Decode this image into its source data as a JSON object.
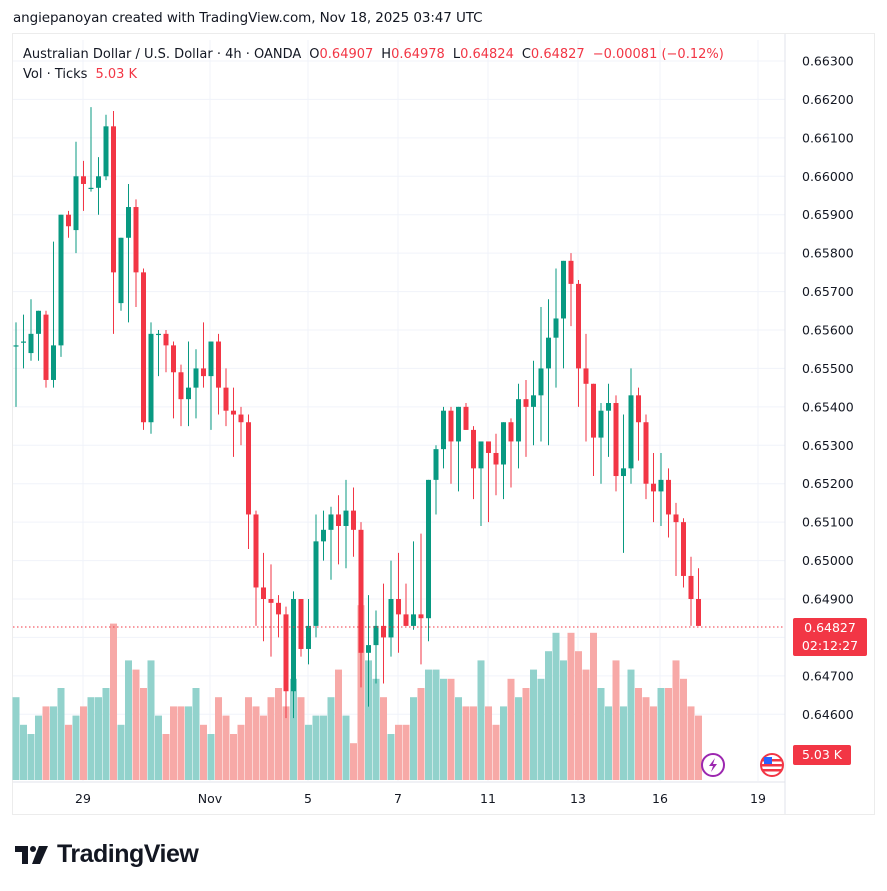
{
  "caption": "angiepanoyan created with TradingView.com, Nov 18, 2025 03:47 UTC",
  "legend": {
    "symbol": "Australian Dollar / U.S. Dollar · 4h · OANDA",
    "o_label": "O",
    "o_value": "0.64907",
    "h_label": "H",
    "h_value": "0.64978",
    "l_label": "L",
    "l_value": "0.64824",
    "c_label": "C",
    "c_value": "0.64827",
    "change": "−0.00081 (−0.12%)",
    "vol_label": "Vol · Ticks",
    "vol_value": "5.03 K"
  },
  "price_axis": {
    "labels": [
      "0.66300",
      "0.66200",
      "0.66100",
      "0.66000",
      "0.65900",
      "0.65800",
      "0.65700",
      "0.65600",
      "0.65500",
      "0.65400",
      "0.65300",
      "0.65200",
      "0.65100",
      "0.65000",
      "0.64900",
      "0.64700",
      "0.64600"
    ]
  },
  "last_price_tag": {
    "price": "0.64827",
    "countdown": "02:12:27"
  },
  "volume_tag": "5.03 K",
  "time_axis": {
    "labels": [
      "29",
      "Nov",
      "5",
      "7",
      "11",
      "13",
      "16",
      "19"
    ]
  },
  "brand": {
    "name": "TradingView"
  },
  "colors": {
    "up": "#089981",
    "down": "#f23645",
    "vol_up": "#92d2cc",
    "vol_down": "#f7a9a7",
    "grid": "#f0f3fa"
  },
  "icons": {
    "events": [
      "lightning-event-icon",
      "us-flag-event-icon"
    ]
  },
  "chart_data": {
    "type": "candlestick",
    "title": "Australian Dollar / U.S. Dollar · 4h · OANDA",
    "xlabel": "",
    "ylabel": "Price",
    "ylim": [
      0.6455,
      0.6635
    ],
    "grid": true,
    "x_ticks": [
      "29",
      "Nov",
      "5",
      "7",
      "11",
      "13",
      "16",
      "19"
    ],
    "y_ticks": [
      0.663,
      0.662,
      0.661,
      0.66,
      0.659,
      0.658,
      0.657,
      0.656,
      0.655,
      0.654,
      0.653,
      0.652,
      0.651,
      0.65,
      0.649,
      0.648,
      0.647,
      0.646
    ],
    "last": {
      "open": 0.64907,
      "high": 0.64978,
      "low": 0.64824,
      "close": 0.64827,
      "change": -0.00081,
      "change_pct": -0.12,
      "volume": "5.03K"
    },
    "candles": [
      [
        0.6556,
        0.6562,
        0.654,
        0.6556,
        9
      ],
      [
        0.6557,
        0.6564,
        0.655,
        0.6557,
        6
      ],
      [
        0.6554,
        0.6568,
        0.6552,
        0.6559,
        5
      ],
      [
        0.6559,
        0.6563,
        0.6552,
        0.6565,
        7
      ],
      [
        0.6564,
        0.6565,
        0.6545,
        0.6547,
        8
      ],
      [
        0.6547,
        0.6583,
        0.6545,
        0.6556,
        8
      ],
      [
        0.6556,
        0.659,
        0.6553,
        0.659,
        10
      ],
      [
        0.659,
        0.6591,
        0.6584,
        0.6587,
        6
      ],
      [
        0.6586,
        0.6609,
        0.658,
        0.66,
        7
      ],
      [
        0.66,
        0.6604,
        0.6591,
        0.6598,
        8
      ],
      [
        0.6597,
        0.6618,
        0.6596,
        0.6597,
        9
      ],
      [
        0.6597,
        0.6605,
        0.659,
        0.66,
        9
      ],
      [
        0.66,
        0.6616,
        0.6599,
        0.6613,
        10
      ],
      [
        0.6613,
        0.6617,
        0.6559,
        0.6575,
        17
      ],
      [
        0.6567,
        0.6579,
        0.6565,
        0.6584,
        6
      ],
      [
        0.6584,
        0.6598,
        0.6562,
        0.6592,
        13
      ],
      [
        0.6592,
        0.6594,
        0.6566,
        0.6575,
        12
      ],
      [
        0.6575,
        0.6576,
        0.6534,
        0.6536,
        10
      ],
      [
        0.6536,
        0.6562,
        0.6533,
        0.6559,
        13
      ],
      [
        0.6559,
        0.656,
        0.6548,
        0.6559,
        7
      ],
      [
        0.6559,
        0.656,
        0.6549,
        0.6556,
        5
      ],
      [
        0.6556,
        0.6557,
        0.6537,
        0.6549,
        8
      ],
      [
        0.6549,
        0.6551,
        0.6535,
        0.6542,
        8
      ],
      [
        0.6542,
        0.6557,
        0.6535,
        0.6545,
        8
      ],
      [
        0.6545,
        0.6555,
        0.6537,
        0.655,
        10
      ],
      [
        0.655,
        0.6562,
        0.6545,
        0.6548,
        6
      ],
      [
        0.6548,
        0.6552,
        0.6534,
        0.6557,
        5
      ],
      [
        0.6557,
        0.6559,
        0.6538,
        0.6545,
        9
      ],
      [
        0.6545,
        0.655,
        0.6535,
        0.6539,
        7
      ],
      [
        0.6539,
        0.6545,
        0.6527,
        0.6538,
        5
      ],
      [
        0.6538,
        0.654,
        0.653,
        0.6536,
        6
      ],
      [
        0.6536,
        0.6538,
        0.6503,
        0.6512,
        9
      ],
      [
        0.6512,
        0.6513,
        0.6483,
        0.6493,
        8
      ],
      [
        0.6493,
        0.6502,
        0.6479,
        0.649,
        7
      ],
      [
        0.649,
        0.6499,
        0.6475,
        0.6489,
        9
      ],
      [
        0.6489,
        0.6491,
        0.648,
        0.6486,
        10
      ],
      [
        0.6486,
        0.6488,
        0.6459,
        0.6466,
        8
      ],
      [
        0.6466,
        0.6492,
        0.6459,
        0.649,
        11
      ],
      [
        0.649,
        0.6486,
        0.6475,
        0.6477,
        9
      ],
      [
        0.6477,
        0.649,
        0.6473,
        0.6483,
        6
      ],
      [
        0.6483,
        0.6512,
        0.648,
        0.6505,
        7
      ],
      [
        0.6505,
        0.6513,
        0.65,
        0.6508,
        7
      ],
      [
        0.6508,
        0.6514,
        0.6495,
        0.6512,
        9
      ],
      [
        0.6512,
        0.6517,
        0.6499,
        0.6509,
        12
      ],
      [
        0.6509,
        0.6521,
        0.6498,
        0.6513,
        7
      ],
      [
        0.6513,
        0.6519,
        0.6501,
        0.6508,
        4
      ],
      [
        0.6508,
        0.651,
        0.6467,
        0.6476,
        19
      ],
      [
        0.6476,
        0.6491,
        0.6462,
        0.6478,
        13
      ],
      [
        0.6478,
        0.6487,
        0.6468,
        0.6483,
        11
      ],
      [
        0.6483,
        0.6494,
        0.6468,
        0.648,
        9
      ],
      [
        0.648,
        0.65,
        0.6475,
        0.649,
        5
      ],
      [
        0.649,
        0.6502,
        0.6476,
        0.6486,
        6
      ],
      [
        0.6486,
        0.6494,
        0.6486,
        0.6483,
        6
      ],
      [
        0.6483,
        0.6505,
        0.6482,
        0.6486,
        9
      ],
      [
        0.6486,
        0.6507,
        0.6473,
        0.6485,
        10
      ],
      [
        0.6485,
        0.6516,
        0.6479,
        0.6521,
        12
      ],
      [
        0.6521,
        0.653,
        0.6512,
        0.6529,
        12
      ],
      [
        0.6529,
        0.654,
        0.6524,
        0.6539,
        11
      ],
      [
        0.6539,
        0.654,
        0.652,
        0.6531,
        11
      ],
      [
        0.6531,
        0.654,
        0.6518,
        0.654,
        9
      ],
      [
        0.654,
        0.6541,
        0.6534,
        0.6534,
        8
      ],
      [
        0.6534,
        0.6535,
        0.6516,
        0.6524,
        8
      ],
      [
        0.6524,
        0.6527,
        0.6509,
        0.6531,
        13
      ],
      [
        0.6531,
        0.6531,
        0.651,
        0.6528,
        8
      ],
      [
        0.6528,
        0.6533,
        0.6517,
        0.6525,
        6
      ],
      [
        0.6525,
        0.653,
        0.6516,
        0.6536,
        8
      ],
      [
        0.6536,
        0.6537,
        0.6519,
        0.6531,
        11
      ],
      [
        0.6531,
        0.6546,
        0.6524,
        0.6542,
        9
      ],
      [
        0.6542,
        0.6547,
        0.6527,
        0.654,
        10
      ],
      [
        0.654,
        0.6552,
        0.653,
        0.6543,
        12
      ],
      [
        0.6543,
        0.6566,
        0.6531,
        0.655,
        11
      ],
      [
        0.655,
        0.6568,
        0.653,
        0.6558,
        14
      ],
      [
        0.6558,
        0.6576,
        0.6545,
        0.6563,
        16
      ],
      [
        0.6563,
        0.6576,
        0.655,
        0.6578,
        13
      ],
      [
        0.6578,
        0.658,
        0.6561,
        0.6572,
        16
      ],
      [
        0.6572,
        0.6573,
        0.654,
        0.655,
        14
      ],
      [
        0.655,
        0.6559,
        0.6531,
        0.6546,
        12
      ],
      [
        0.6546,
        0.6546,
        0.6522,
        0.6532,
        16
      ],
      [
        0.6532,
        0.6541,
        0.652,
        0.6539,
        10
      ],
      [
        0.6539,
        0.6546,
        0.6527,
        0.6541,
        8
      ],
      [
        0.6541,
        0.6543,
        0.6518,
        0.6522,
        13
      ],
      [
        0.6522,
        0.6538,
        0.6502,
        0.6524,
        8
      ],
      [
        0.6524,
        0.655,
        0.652,
        0.6543,
        12
      ],
      [
        0.6543,
        0.6545,
        0.6526,
        0.6536,
        10
      ],
      [
        0.6536,
        0.6538,
        0.6516,
        0.652,
        9
      ],
      [
        0.652,
        0.6528,
        0.651,
        0.6518,
        8
      ],
      [
        0.6518,
        0.6528,
        0.6509,
        0.6521,
        10
      ],
      [
        0.6521,
        0.6524,
        0.6506,
        0.6512,
        10
      ],
      [
        0.6512,
        0.6515,
        0.6496,
        0.651,
        13
      ],
      [
        0.651,
        0.6511,
        0.6493,
        0.6496,
        11
      ],
      [
        0.6496,
        0.6501,
        0.6483,
        0.649,
        8
      ],
      [
        0.649,
        0.6498,
        0.6484,
        0.6483,
        7
      ]
    ],
    "candle_format": "[open, high, low, close, relative_volume]"
  }
}
